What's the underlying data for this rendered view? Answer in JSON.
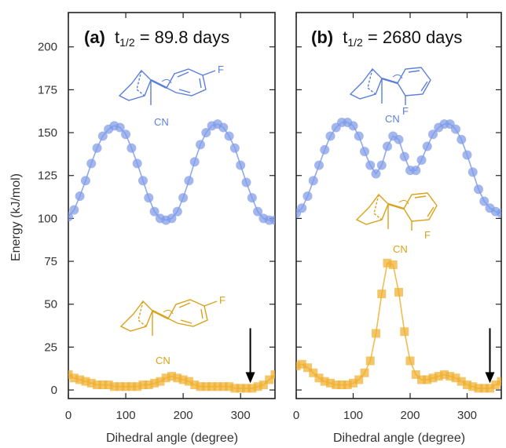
{
  "chart_data": [
    {
      "type": "line",
      "panel_label": "(a)",
      "title_prefix": "t",
      "title_subscript": "1/2",
      "title_value": " = 89.8 days",
      "xlabel": "Dihedral angle (degree)",
      "ylabel": "Energy (kJ/mol)",
      "xlim": [
        0,
        360
      ],
      "ylim": [
        -5,
        220
      ],
      "xticks": [
        0,
        100,
        200,
        300
      ],
      "yticks": [
        0,
        25,
        50,
        75,
        100,
        125,
        150,
        175,
        200
      ],
      "grid": false,
      "annotations": [
        {
          "type": "arrow",
          "x": 317,
          "y_from": 36,
          "y_to": 4
        },
        {
          "type": "molecule",
          "substituent": "F",
          "group": "CN",
          "color": "#5b7fd9",
          "near_series": "upper"
        },
        {
          "type": "molecule",
          "substituent": "F",
          "group": "CN",
          "color": "#d9a21a",
          "near_series": "lower"
        }
      ],
      "series": [
        {
          "color": "#7f9be8",
          "marker": "circle",
          "x": [
            0,
            10,
            20,
            30,
            40,
            50,
            60,
            70,
            80,
            90,
            100,
            110,
            120,
            130,
            140,
            150,
            160,
            170,
            180,
            190,
            200,
            210,
            220,
            230,
            240,
            250,
            260,
            270,
            280,
            290,
            300,
            310,
            320,
            330,
            340,
            350,
            360
          ],
          "values": [
            101,
            105,
            113,
            122,
            132,
            141,
            148,
            152,
            154,
            153,
            149,
            141,
            132,
            122,
            112,
            104,
            100,
            99,
            100,
            104,
            112,
            122,
            133,
            143,
            150,
            154,
            155,
            153,
            148,
            141,
            131,
            121,
            112,
            104,
            100,
            99,
            99
          ]
        },
        {
          "color": "#f0b030",
          "marker": "square",
          "x": [
            0,
            10,
            20,
            30,
            40,
            50,
            60,
            70,
            80,
            90,
            100,
            110,
            120,
            130,
            140,
            150,
            160,
            170,
            180,
            190,
            200,
            210,
            220,
            230,
            240,
            250,
            260,
            270,
            280,
            290,
            300,
            310,
            320,
            330,
            340,
            350,
            360
          ],
          "values": [
            9,
            7,
            6,
            5,
            4,
            3,
            3,
            3,
            2,
            2,
            2,
            2,
            2,
            3,
            3,
            4,
            5,
            7,
            8,
            7,
            6,
            5,
            3,
            2,
            2,
            2,
            2,
            2,
            2,
            1,
            1,
            1,
            1,
            2,
            3,
            6,
            9
          ]
        }
      ]
    },
    {
      "type": "line",
      "panel_label": "(b)",
      "title_prefix": "t",
      "title_subscript": "1/2",
      "title_value": " = 2680 days",
      "xlabel": "Dihedral angle (degree)",
      "ylabel": "",
      "xlim": [
        0,
        360
      ],
      "ylim": [
        -5,
        220
      ],
      "xticks": [
        0,
        100,
        200,
        300
      ],
      "yticks": [
        0,
        25,
        50,
        75,
        100,
        125,
        150,
        175,
        200
      ],
      "grid": false,
      "annotations": [
        {
          "type": "arrow",
          "x": 340,
          "y_from": 36,
          "y_to": 4
        },
        {
          "type": "molecule",
          "substituent": "F",
          "group": "CN",
          "color": "#5b7fd9",
          "near_series": "upper"
        },
        {
          "type": "molecule",
          "substituent": "F",
          "group": "CN",
          "color": "#d9a21a",
          "near_series": "lower"
        }
      ],
      "series": [
        {
          "color": "#7f9be8",
          "marker": "circle",
          "x": [
            0,
            10,
            20,
            30,
            40,
            50,
            60,
            70,
            80,
            90,
            100,
            110,
            120,
            130,
            140,
            150,
            160,
            170,
            180,
            190,
            200,
            210,
            220,
            230,
            240,
            250,
            260,
            270,
            280,
            290,
            300,
            310,
            320,
            330,
            340,
            350,
            360
          ],
          "values": [
            103,
            106,
            113,
            122,
            131,
            140,
            148,
            153,
            156,
            156,
            154,
            148,
            139,
            131,
            126,
            131,
            142,
            148,
            146,
            136,
            128,
            128,
            134,
            142,
            149,
            153,
            155,
            155,
            152,
            146,
            137,
            127,
            117,
            110,
            106,
            104,
            103
          ]
        },
        {
          "color": "#f0b030",
          "marker": "square",
          "x": [
            0,
            10,
            20,
            30,
            40,
            50,
            60,
            70,
            80,
            90,
            100,
            110,
            120,
            130,
            140,
            150,
            160,
            170,
            180,
            190,
            200,
            210,
            220,
            230,
            240,
            250,
            260,
            270,
            280,
            290,
            300,
            310,
            320,
            330,
            340,
            350,
            360
          ],
          "values": [
            14,
            15,
            13,
            10,
            7,
            5,
            4,
            3,
            3,
            3,
            4,
            6,
            10,
            17,
            33,
            56,
            74,
            73,
            57,
            34,
            17,
            9,
            6,
            6,
            7,
            8,
            9,
            8,
            7,
            5,
            3,
            2,
            1,
            1,
            1,
            3,
            5
          ]
        }
      ]
    }
  ]
}
